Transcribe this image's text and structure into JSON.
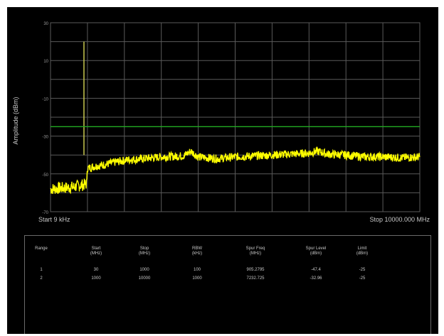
{
  "chart_data": {
    "type": "line",
    "ylabel": "Amplitude (dBm)",
    "yticks": [
      "30",
      "10",
      "-10",
      "-30",
      "-50",
      "-70"
    ],
    "ylim": [
      -70,
      30
    ],
    "x_start_label": "Start 9 kHz",
    "x_stop_label": "Stop 10000.000 MHz",
    "xlim_mhz": [
      0.009,
      10000
    ],
    "grid": true,
    "limit_line_dbm": -25,
    "series": [
      {
        "color": "#ffff00",
        "x_mhz": [
          0.009,
          300,
          600,
          950,
          990,
          1000,
          1200,
          1500,
          1700,
          1950,
          2000,
          2100,
          2500,
          3000,
          3600,
          3800,
          4000,
          4500,
          5000,
          5500,
          6000,
          6500,
          7000,
          7233,
          7500,
          8000,
          8500,
          9000,
          9500,
          10000
        ],
        "y_dbm": [
          -58,
          -57.5,
          -57,
          -55.5,
          -55,
          -47,
          -46,
          -45,
          -44,
          -43,
          -43,
          -42.5,
          -42,
          -41,
          -40.5,
          -38,
          -41,
          -42,
          -41,
          -40.5,
          -40,
          -39.5,
          -39,
          -38,
          -39.5,
          -40,
          -41,
          -41,
          -41.5,
          -41
        ]
      }
    ],
    "spur_marker": {
      "x_mhz": 905.2795,
      "y_dbm": 20,
      "color": "#c8c850"
    },
    "limit_color": "#22aa22",
    "grid_color": "#5a5a5a"
  },
  "table": {
    "headers": [
      [
        "Range",
        ""
      ],
      [
        "Start",
        "(MHz)"
      ],
      [
        "Stop",
        "(MHz)"
      ],
      [
        "RBW",
        "(kHz)"
      ],
      [
        "Spur Freq",
        "(MHz)"
      ],
      [
        "Spur Level",
        "(dBm)"
      ],
      [
        "Limit",
        "(dBm)"
      ]
    ],
    "rows": [
      [
        "1",
        "30",
        "1000",
        "100",
        "905.2795",
        "-47.4",
        "-25"
      ],
      [
        "2",
        "1000",
        "10000",
        "1000",
        "7232.725",
        "-32.96",
        "-25"
      ]
    ]
  }
}
